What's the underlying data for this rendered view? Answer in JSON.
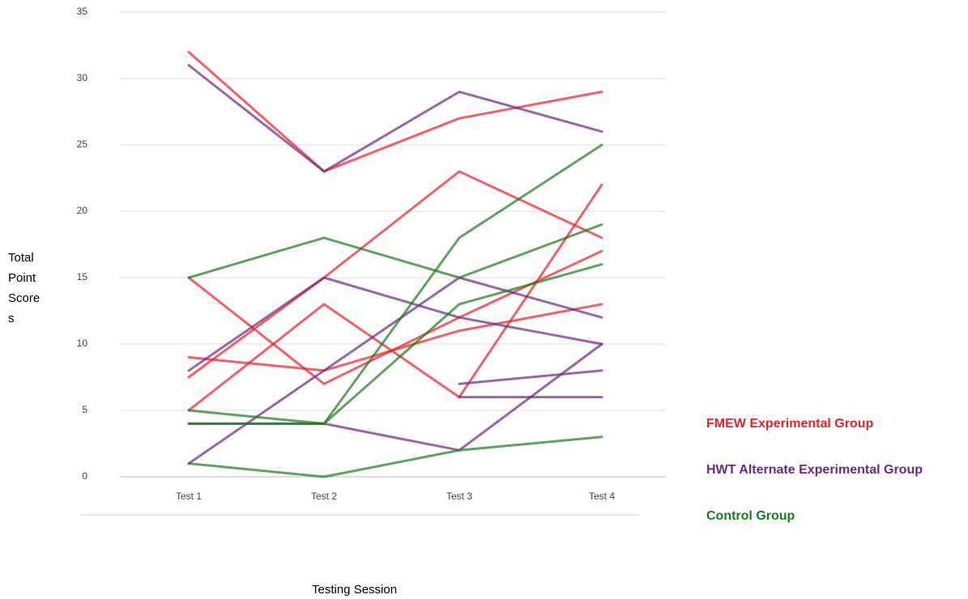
{
  "chart_data": {
    "type": "line",
    "categories": [
      "Test 1",
      "Test 2",
      "Test 3",
      "Test 4"
    ],
    "x_label": "Testing Session",
    "y_label": "Total Point Scores",
    "ylim": [
      0,
      35
    ],
    "yticks": [
      0,
      5,
      10,
      15,
      20,
      25,
      30,
      35
    ],
    "grid": true,
    "series": [
      {
        "name": "FMEW Experimental Group",
        "color": "#e8202a",
        "lines": [
          [
            32,
            23,
            27,
            29
          ],
          [
            7.5,
            15,
            23,
            18
          ],
          [
            15,
            7,
            12,
            17
          ],
          [
            9,
            8,
            11,
            13
          ],
          [
            5,
            13,
            6,
            22
          ]
        ]
      },
      {
        "name": "HWT Alternate Experimental Group",
        "color": "#6a2a7f",
        "lines": [
          [
            31,
            23,
            29,
            26
          ],
          [
            8,
            15,
            12,
            10
          ],
          [
            1,
            8,
            15,
            12
          ],
          [
            4,
            4,
            2,
            10
          ],
          [
            null,
            null,
            6,
            6
          ],
          [
            null,
            null,
            7,
            8
          ]
        ]
      },
      {
        "name": "Control Group",
        "color": "#1e7a1e",
        "lines": [
          [
            15,
            18,
            15,
            19
          ],
          [
            1,
            0,
            2,
            3
          ],
          [
            5,
            4,
            18,
            25
          ],
          [
            4,
            4,
            13,
            16
          ]
        ]
      }
    ]
  }
}
